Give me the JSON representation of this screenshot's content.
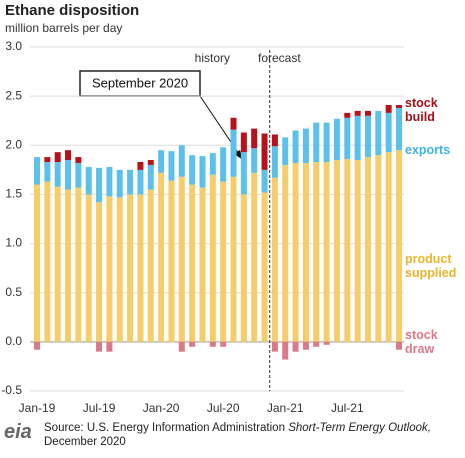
{
  "chart_data": {
    "type": "stacked-bar",
    "title": "Ethane disposition",
    "subtitle": "million barrels per day",
    "annotations": {
      "history": "history",
      "forecast": "forecast",
      "callout": "September 2020"
    },
    "categories": [
      "Jan-19",
      null,
      null,
      null,
      null,
      null,
      "Jul-19",
      null,
      null,
      null,
      null,
      null,
      "Jan-20",
      null,
      null,
      null,
      null,
      null,
      "Jul-20",
      null,
      null,
      null,
      null,
      null,
      "Jan-21",
      null,
      null,
      null,
      null,
      null,
      "Jul-21",
      null,
      null,
      null,
      null,
      null
    ],
    "series": [
      {
        "name": "product supplied",
        "color": "#f5cd6b",
        "label_color": "#e8b52a",
        "values": [
          1.6,
          1.63,
          1.58,
          1.55,
          1.57,
          1.5,
          1.42,
          1.48,
          1.47,
          1.5,
          1.5,
          1.55,
          1.72,
          1.64,
          1.68,
          1.6,
          1.57,
          1.7,
          1.63,
          1.68,
          1.5,
          1.72,
          1.52,
          1.67,
          1.8,
          1.82,
          1.82,
          1.83,
          1.83,
          1.85,
          1.86,
          1.85,
          1.88,
          1.9,
          1.93,
          1.95
        ]
      },
      {
        "name": "exports",
        "color": "#5bc0eb",
        "label_color": "#3bb5e6",
        "values": [
          0.28,
          0.2,
          0.25,
          0.3,
          0.25,
          0.28,
          0.35,
          0.3,
          0.28,
          0.25,
          0.25,
          0.25,
          0.23,
          0.3,
          0.32,
          0.3,
          0.32,
          0.22,
          0.35,
          0.48,
          0.43,
          0.25,
          0.23,
          0.32,
          0.28,
          0.33,
          0.35,
          0.4,
          0.4,
          0.42,
          0.42,
          0.45,
          0.42,
          0.45,
          0.4,
          0.43
        ]
      },
      {
        "name": "stock build",
        "color": "#b5121b",
        "label_color": "#a50f15",
        "values": [
          0,
          0.05,
          0.1,
          0.1,
          0.06,
          0,
          0,
          0,
          0,
          0,
          0.08,
          0.05,
          0,
          0,
          0,
          0,
          0,
          0,
          0,
          0.12,
          0.2,
          0.2,
          0.37,
          0.12,
          0,
          0,
          0,
          0,
          0,
          0,
          0.05,
          0.05,
          0.05,
          0,
          0.08,
          0.03
        ]
      },
      {
        "name": "stock draw",
        "color": "#d9798a",
        "label_color": "#d9798a",
        "values": [
          -0.08,
          0,
          0,
          0,
          0,
          0,
          -0.1,
          -0.1,
          0,
          0,
          0,
          0,
          0,
          0,
          -0.1,
          -0.05,
          0,
          -0.05,
          -0.05,
          0,
          0,
          0,
          0,
          -0.1,
          -0.18,
          -0.1,
          -0.08,
          -0.05,
          -0.03,
          0,
          0,
          0,
          0,
          0,
          0,
          -0.08
        ]
      }
    ],
    "ylim": [
      -0.5,
      3.0
    ],
    "yticks": [
      {
        "value": -0.5,
        "label": "-0.5"
      },
      {
        "value": 0,
        "label": "0.0"
      },
      {
        "value": 0.5,
        "label": "0.5"
      },
      {
        "value": 1,
        "label": "1.0"
      },
      {
        "value": 1.5,
        "label": "1.5"
      },
      {
        "value": 2,
        "label": "2.0"
      },
      {
        "value": 2.5,
        "label": "2.5"
      },
      {
        "value": 3,
        "label": "3.0"
      }
    ],
    "grid": true,
    "source": {
      "prefix": "Source: U.S. Energy Information Administration",
      "publication": "Short-Term Energy Outlook,",
      "date": "December 2020"
    },
    "logo": "eia"
  }
}
